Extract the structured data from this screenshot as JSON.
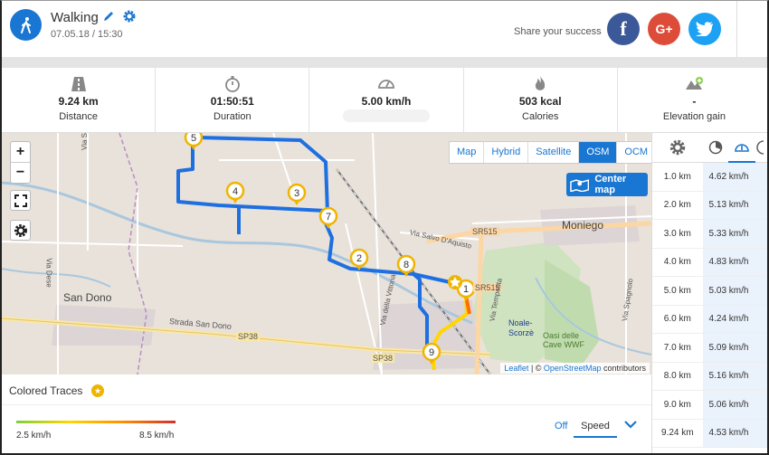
{
  "header": {
    "title": "Walking",
    "date": "07.05.18 / 15:30",
    "share_label": "Share your success",
    "facebook_glyph": "f",
    "google_glyph": "G+"
  },
  "stats": [
    {
      "icon": "road-icon",
      "value": "9.24 km",
      "label": "Distance"
    },
    {
      "icon": "stopwatch-icon",
      "value": "01:50:51",
      "label": "Duration"
    },
    {
      "icon": "speedometer-icon",
      "value": "5.00 km/h",
      "label": ""
    },
    {
      "icon": "flame-icon",
      "value": "503 kcal",
      "label": "Calories"
    },
    {
      "icon": "elevation-icon",
      "value": "-",
      "label": "Elevation gain"
    }
  ],
  "map": {
    "zoom_in": "+",
    "zoom_out": "−",
    "layers": [
      "Map",
      "Hybrid",
      "Satellite",
      "OSM",
      "OCM"
    ],
    "active_layer": "OSM",
    "center_map": "Center map",
    "attribution_leaflet": "Leaflet",
    "attribution_rest": " | © ",
    "attribution_osm": "OpenStreetMap",
    "attribution_tail": " contributors",
    "place_labels": [
      "Moniego",
      "San Dono",
      "Strada San Dono",
      "SP38",
      "SP38",
      "SR515",
      "SR515",
      "Via Salvo D'Aquisto",
      "Via Dese",
      "Via Tempesta",
      "Via della Vittoria",
      "Via Spagnolo",
      "Noale-Scorzè",
      "Oasi delle Cave WWF",
      "Via S"
    ],
    "markers": [
      "1",
      "2",
      "3",
      "4",
      "5",
      "7",
      "8",
      "9"
    ]
  },
  "legend": {
    "title": "Colored Traces",
    "min": "2.5 km/h",
    "max": "8.5 km/h",
    "off": "Off",
    "mode": "Speed",
    "gradient_colors": [
      "#7fce3e",
      "#ffd600",
      "#ff8f00",
      "#d32f2f"
    ]
  },
  "splits": [
    {
      "km": "1.0 km",
      "speed": "4.62 km/h"
    },
    {
      "km": "2.0 km",
      "speed": "5.13 km/h"
    },
    {
      "km": "3.0 km",
      "speed": "5.33 km/h"
    },
    {
      "km": "4.0 km",
      "speed": "4.83 km/h"
    },
    {
      "km": "5.0 km",
      "speed": "5.03 km/h"
    },
    {
      "km": "6.0 km",
      "speed": "4.24 km/h"
    },
    {
      "km": "7.0 km",
      "speed": "5.09 km/h"
    },
    {
      "km": "8.0 km",
      "speed": "5.16 km/h"
    },
    {
      "km": "9.0 km",
      "speed": "5.06 km/h"
    },
    {
      "km": "9.24 km",
      "speed": "4.53 km/h"
    }
  ],
  "colors": {
    "accent": "#1976d2",
    "route": "#1e6fe0",
    "marker": "#f0b400"
  }
}
